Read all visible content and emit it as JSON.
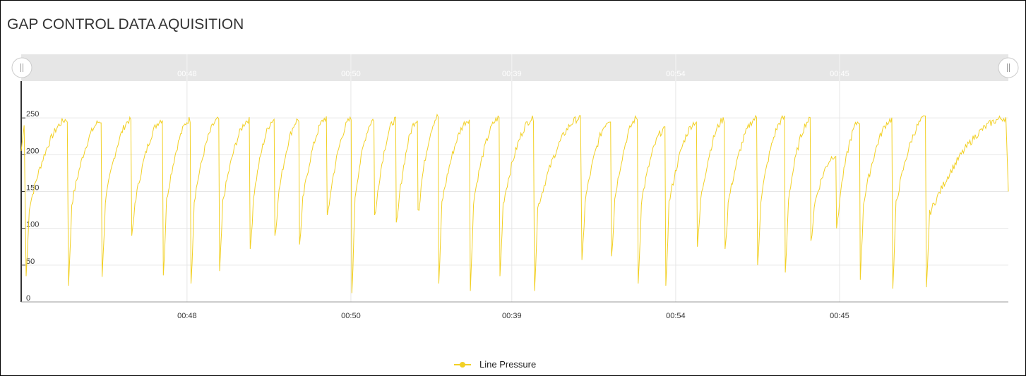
{
  "panel": {
    "title": "GAP CONTROL DATA AQUISITION"
  },
  "chart_data": {
    "type": "line",
    "title": "GAP CONTROL DATA AQUISITION",
    "x_ticks": [
      "00:48",
      "00:50",
      "00:39",
      "00:54",
      "00:45"
    ],
    "navigator_ticks": [
      "00:48",
      "00:50",
      "00:39",
      "00:54",
      "00:45"
    ],
    "y_ticks": [
      0,
      50,
      100,
      150,
      200,
      250
    ],
    "ylim": [
      0,
      300
    ],
    "grid": true,
    "legend_position": "bottom-center",
    "series": [
      {
        "name": "Line Pressure",
        "color": "#f2d024",
        "cycles": [
          {
            "start": 0.5,
            "peak": 248,
            "trough": 35
          },
          {
            "start": 4.8,
            "peak": 246,
            "trough": 22
          },
          {
            "start": 8.2,
            "peak": 248,
            "trough": 34
          },
          {
            "start": 11.2,
            "peak": 248,
            "trough": 90
          },
          {
            "start": 14.4,
            "peak": 248,
            "trough": 36
          },
          {
            "start": 17.2,
            "peak": 248,
            "trough": 25
          },
          {
            "start": 20.1,
            "peak": 248,
            "trough": 42
          },
          {
            "start": 23.2,
            "peak": 248,
            "trough": 72
          },
          {
            "start": 25.7,
            "peak": 248,
            "trough": 90
          },
          {
            "start": 28.2,
            "peak": 250,
            "trough": 78
          },
          {
            "start": 31.0,
            "peak": 248,
            "trough": 118
          },
          {
            "start": 33.5,
            "peak": 248,
            "trough": 12
          },
          {
            "start": 35.8,
            "peak": 248,
            "trough": 118
          },
          {
            "start": 38.0,
            "peak": 248,
            "trough": 108
          },
          {
            "start": 40.2,
            "peak": 252,
            "trough": 125
          },
          {
            "start": 42.3,
            "peak": 248,
            "trough": 25
          },
          {
            "start": 45.5,
            "peak": 250,
            "trough": 15
          },
          {
            "start": 48.5,
            "peak": 250,
            "trough": 35
          },
          {
            "start": 52.0,
            "peak": 250,
            "trough": 15
          },
          {
            "start": 56.8,
            "peak": 248,
            "trough": 57
          },
          {
            "start": 59.8,
            "peak": 250,
            "trough": 62
          },
          {
            "start": 62.5,
            "peak": 235,
            "trough": 25
          },
          {
            "start": 65.3,
            "peak": 245,
            "trough": 22
          },
          {
            "start": 68.5,
            "peak": 248,
            "trough": 75
          },
          {
            "start": 71.3,
            "peak": 250,
            "trough": 72
          },
          {
            "start": 74.6,
            "peak": 250,
            "trough": 50
          },
          {
            "start": 77.4,
            "peak": 248,
            "trough": 40
          },
          {
            "start": 80.0,
            "peak": 200,
            "trough": 83
          },
          {
            "start": 82.6,
            "peak": 246,
            "trough": 100
          },
          {
            "start": 85.0,
            "peak": 248,
            "trough": 30
          },
          {
            "start": 88.3,
            "peak": 250,
            "trough": 18
          },
          {
            "start": 91.7,
            "peak": 250,
            "trough": 20
          }
        ],
        "end": {
          "x": 100,
          "y": 150
        }
      }
    ]
  }
}
